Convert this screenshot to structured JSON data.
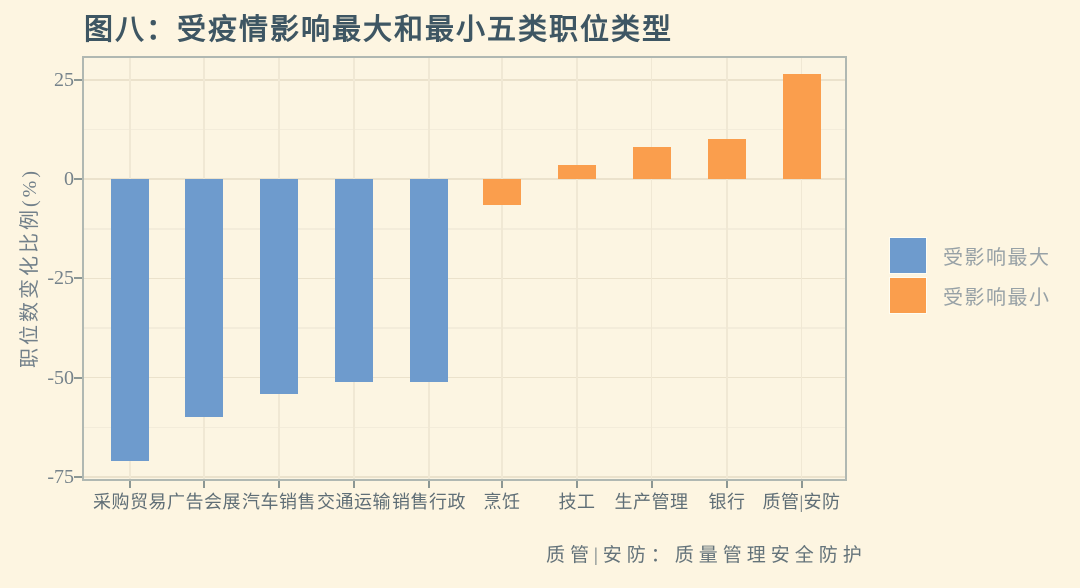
{
  "figure": {
    "title": "图八：受疫情影响最大和最小五类职位类型",
    "footnote": "质管|安防：质量管理安全防护"
  },
  "legend": {
    "items": [
      {
        "label": "受影响最大",
        "color": "#6e9bcd"
      },
      {
        "label": "受影响最小",
        "color": "#fa9e4d"
      }
    ]
  },
  "colors": {
    "background": "#fdf5e1",
    "plot_background": "#fcf5e2",
    "grid_major": "#ebe2cc",
    "grid_minor": "#f3ecda",
    "panel_border": "#b0b8b2",
    "bar_most_affected": "#6e9bcd",
    "bar_least_affected": "#fa9e4d",
    "title_text": "#3e5663",
    "axis_text": "#76838b"
  },
  "chart_data": {
    "type": "bar",
    "title": "图八：受疫情影响最大和最小五类职位类型",
    "xlabel": "",
    "ylabel": "职位数变化比例(%)",
    "categories": [
      "采购贸易",
      "广告会展",
      "汽车销售",
      "交通运输",
      "销售行政",
      "烹饪",
      "技工",
      "生产管理",
      "银行",
      "质管|安防"
    ],
    "values": [
      -71,
      -60,
      -54,
      -51,
      -51,
      -6.5,
      3.5,
      8,
      10,
      26.5
    ],
    "bar_groups": [
      "受影响最大",
      "受影响最大",
      "受影响最大",
      "受影响最大",
      "受影响最大",
      "受影响最小",
      "受影响最小",
      "受影响最小",
      "受影响最小",
      "受影响最小"
    ],
    "group_colors": {
      "受影响最大": "#6e9bcd",
      "受影响最小": "#fa9e4d"
    },
    "yticks": [
      25,
      0,
      -25,
      -50,
      -75
    ],
    "yticks_minor": [
      12.5,
      -12.5,
      -37.5,
      -62.5
    ],
    "ylim": [
      -76,
      31
    ],
    "grid": "horizontal major+minor, vertical at category centers",
    "legend_position": "right",
    "legend": [
      "受影响最大",
      "受影响最小"
    ],
    "annotation": "质管|安防：质量管理安全防护"
  }
}
